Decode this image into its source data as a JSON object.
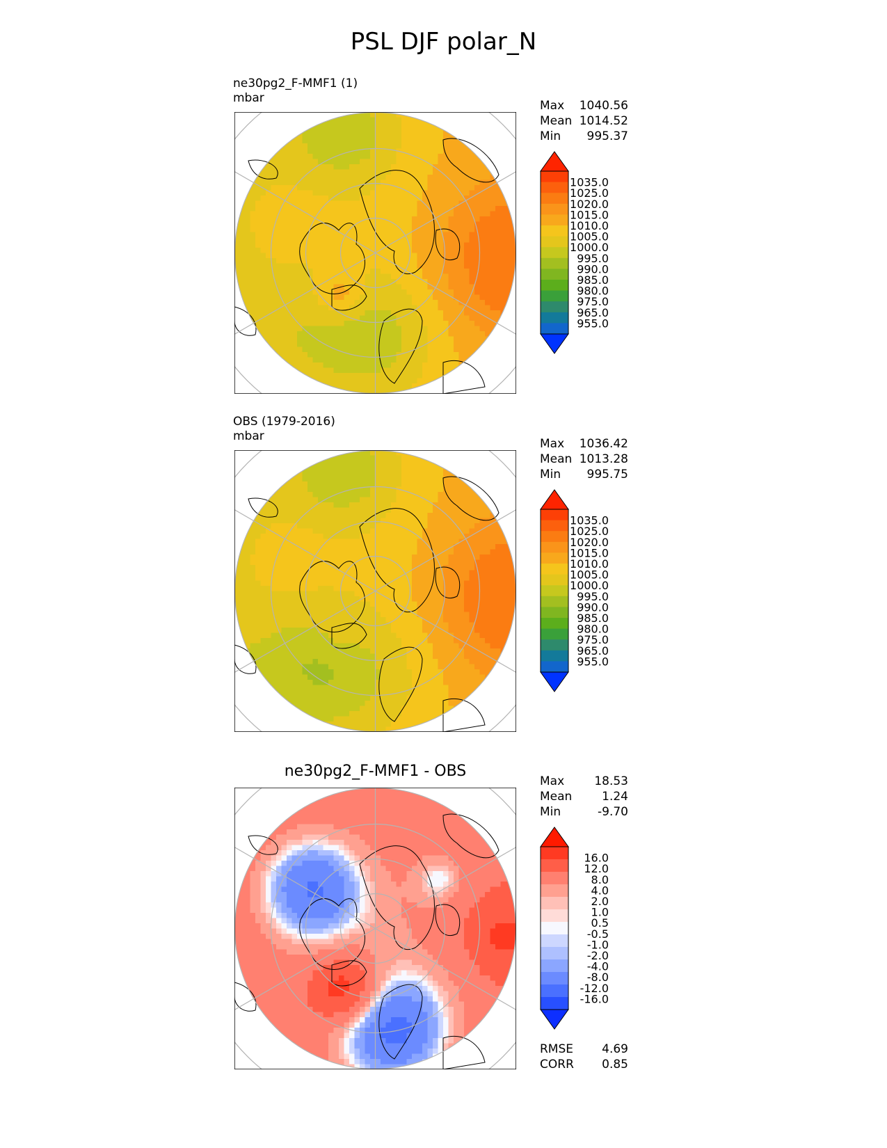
{
  "title": "PSL DJF polar_N",
  "colors": {
    "psl_levels": [
      "#0033ff",
      "#1266cc",
      "#137a9a",
      "#2e8a6c",
      "#3aa03a",
      "#5cae1c",
      "#80b620",
      "#a3bf20",
      "#c6c81e",
      "#e4c61c",
      "#f5c51c",
      "#f8a81c",
      "#fa941a",
      "#fb7c12",
      "#fc600d",
      "#fd4006",
      "#fe2400"
    ],
    "diff_levels": [
      "#0d2fff",
      "#2850ff",
      "#4a70ff",
      "#6b8bff",
      "#8ba6ff",
      "#aec0ff",
      "#cdd7ff",
      "#f7f8ff",
      "#ffdcd8",
      "#ffc0b7",
      "#ffa090",
      "#ff8070",
      "#ff5e48",
      "#ff3a22",
      "#ff1a00"
    ],
    "land_outline": "#000000",
    "graticule": "#b4b4b4"
  },
  "panels": [
    {
      "id": "test",
      "label_line1": "ne30pg2_F-MMF1 (1)",
      "label_line2": "mbar",
      "stats": [
        {
          "label": "Max",
          "value": "1040.56"
        },
        {
          "label": "Mean",
          "value": "1014.52"
        },
        {
          "label": "Min",
          "value": "995.37"
        }
      ],
      "colorbar_labels": [
        "1035.0",
        "1025.0",
        "1020.0",
        "1015.0",
        "1010.0",
        "1005.0",
        "1000.0",
        "995.0",
        "990.0",
        "985.0",
        "980.0",
        "975.0",
        "965.0",
        "955.0"
      ]
    },
    {
      "id": "ref",
      "label_line1": "OBS (1979-2016)",
      "label_line2": "mbar",
      "stats": [
        {
          "label": "Max",
          "value": "1036.42"
        },
        {
          "label": "Mean",
          "value": "1013.28"
        },
        {
          "label": "Min",
          "value": "995.75"
        }
      ],
      "colorbar_labels": [
        "1035.0",
        "1025.0",
        "1020.0",
        "1015.0",
        "1010.0",
        "1005.0",
        "1000.0",
        "995.0",
        "990.0",
        "985.0",
        "980.0",
        "975.0",
        "965.0",
        "955.0"
      ]
    },
    {
      "id": "diff",
      "title": "ne30pg2_F-MMF1 - OBS",
      "stats": [
        {
          "label": "Max",
          "value": "18.53"
        },
        {
          "label": "Mean",
          "value": "1.24"
        },
        {
          "label": "Min",
          "value": "-9.70"
        }
      ],
      "colorbar_labels": [
        "16.0",
        "12.0",
        "8.0",
        "4.0",
        "2.0",
        "1.0",
        "0.5",
        "-0.5",
        "-1.0",
        "-2.0",
        "-4.0",
        "-8.0",
        "-12.0",
        "-16.0"
      ],
      "metrics": [
        {
          "label": "RMSE",
          "value": "4.69"
        },
        {
          "label": "CORR",
          "value": "0.85"
        }
      ]
    }
  ],
  "chart_data": [
    {
      "type": "heatmap",
      "title": "ne30pg2_F-MMF1 (1)",
      "units": "mbar",
      "projection": "north polar stereographic",
      "variable": "PSL",
      "season": "DJF",
      "region": "polar_N",
      "max": 1040.56,
      "mean": 1014.52,
      "min": 995.37,
      "levels": [
        955,
        965,
        975,
        980,
        985,
        990,
        995,
        1000,
        1005,
        1010,
        1015,
        1020,
        1025,
        1035
      ]
    },
    {
      "type": "heatmap",
      "title": "OBS (1979-2016)",
      "units": "mbar",
      "projection": "north polar stereographic",
      "max": 1036.42,
      "mean": 1013.28,
      "min": 995.75,
      "levels": [
        955,
        965,
        975,
        980,
        985,
        990,
        995,
        1000,
        1005,
        1010,
        1015,
        1020,
        1025,
        1035
      ]
    },
    {
      "type": "heatmap",
      "title": "ne30pg2_F-MMF1 - OBS",
      "projection": "north polar stereographic",
      "max": 18.53,
      "mean": 1.24,
      "min": -9.7,
      "rmse": 4.69,
      "corr": 0.85,
      "levels": [
        -16,
        -12,
        -8,
        -4,
        -2,
        -1,
        -0.5,
        0.5,
        1,
        2,
        4,
        8,
        12,
        16
      ]
    }
  ]
}
